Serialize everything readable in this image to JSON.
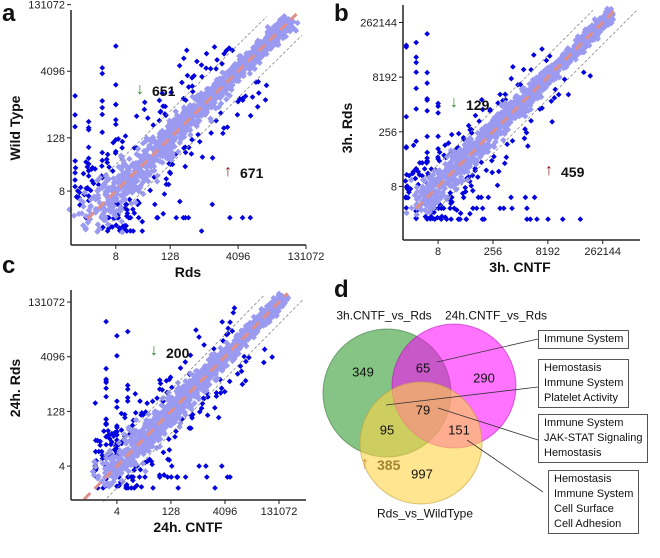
{
  "panels": {
    "a": "a",
    "b": "b",
    "c": "c",
    "d": "d"
  },
  "chart_data": [
    {
      "type": "scatter",
      "panel": "a",
      "xlabel": "Rds",
      "ylabel": "Wild Type",
      "scale": "log2",
      "xticks": [
        8,
        128,
        4096,
        131072
      ],
      "yticks": [
        8,
        128,
        4096,
        131072
      ],
      "down_count": "651",
      "up_count": "671",
      "colors": {
        "points": "#9a9af0",
        "outliers": "#0000e0",
        "fit": "#e0908a"
      }
    },
    {
      "type": "scatter",
      "panel": "b",
      "xlabel": "3h. CNTF",
      "ylabel": "3h. Rds",
      "scale": "log2",
      "xticks": [
        8,
        256,
        8192,
        262144
      ],
      "yticks": [
        8,
        256,
        8192,
        262144
      ],
      "down_count": "129",
      "up_count": "459",
      "colors": {
        "points": "#9a9af0",
        "outliers": "#0000e0",
        "fit": "#e0908a"
      }
    },
    {
      "type": "scatter",
      "panel": "c",
      "xlabel": "24h. CNTF",
      "ylabel": "24h. Rds",
      "scale": "log2",
      "xticks": [
        4,
        128,
        4096,
        131072
      ],
      "yticks": [
        4,
        128,
        4096,
        131072
      ],
      "down_count": "200",
      "up_count": "385",
      "colors": {
        "points": "#9a9af0",
        "outliers": "#0000e0",
        "fit": "#e0908a"
      }
    },
    {
      "type": "venn",
      "panel": "d",
      "sets": [
        "3h.CNTF_vs_Rds",
        "24h.CNTF_vs_Rds",
        "Rds_vs_WildType"
      ],
      "regions": {
        "3h_only": "349",
        "24h_only": "290",
        "wt_only": "997",
        "3h_24h": "65",
        "3h_wt": "95",
        "24h_wt": "151",
        "all": "79"
      },
      "annotations": [
        {
          "target": "3h_24h",
          "lines": [
            "Immune System"
          ]
        },
        {
          "target": "3h_wt",
          "lines": [
            "Hemostasis",
            "Immune System",
            "Platelet Activity"
          ]
        },
        {
          "target": "all",
          "lines": [
            "Immune System",
            "JAK-STAT Signaling",
            "Hemostasis"
          ]
        },
        {
          "target": "24h_wt",
          "lines": [
            "Hemostasis",
            "Immune System",
            "Cell Surface",
            "Cell Adhesion"
          ]
        }
      ]
    }
  ]
}
